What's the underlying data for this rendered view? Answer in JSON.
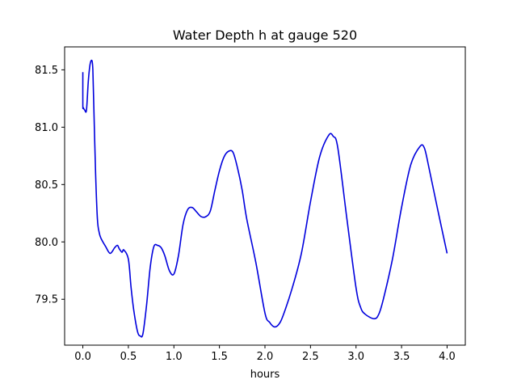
{
  "chart_data": {
    "type": "line",
    "title": "Water Depth h at gauge 520",
    "xlabel": "hours",
    "ylabel": "",
    "xlim": [
      -0.2,
      4.2
    ],
    "ylim": [
      79.1,
      81.7
    ],
    "xticks": [
      0.0,
      0.5,
      1.0,
      1.5,
      2.0,
      2.5,
      3.0,
      3.5,
      4.0
    ],
    "xtick_labels": [
      "0.0",
      "0.5",
      "1.0",
      "1.5",
      "2.0",
      "2.5",
      "3.0",
      "3.5",
      "4.0"
    ],
    "yticks": [
      79.5,
      80.0,
      80.5,
      81.0,
      81.5
    ],
    "ytick_labels": [
      "79.5",
      "80.0",
      "80.5",
      "81.0",
      "81.5"
    ],
    "grid": false,
    "series": [
      {
        "color": "#0000dd",
        "x": [
          0.0,
          0.0,
          0.005,
          0.02,
          0.04,
          0.06,
          0.08,
          0.1,
          0.11,
          0.12,
          0.14,
          0.16,
          0.18,
          0.2,
          0.25,
          0.3,
          0.35,
          0.38,
          0.4,
          0.43,
          0.45,
          0.5,
          0.53,
          0.56,
          0.6,
          0.63,
          0.66,
          0.7,
          0.74,
          0.78,
          0.82,
          0.86,
          0.9,
          0.95,
          1.0,
          1.05,
          1.1,
          1.15,
          1.2,
          1.25,
          1.3,
          1.35,
          1.4,
          1.45,
          1.5,
          1.55,
          1.6,
          1.65,
          1.7,
          1.75,
          1.8,
          1.9,
          2.0,
          2.05,
          2.1,
          2.15,
          2.2,
          2.3,
          2.4,
          2.5,
          2.6,
          2.7,
          2.75,
          2.8,
          2.9,
          3.0,
          3.05,
          3.1,
          3.2,
          3.25,
          3.3,
          3.4,
          3.5,
          3.6,
          3.7,
          3.75,
          3.8,
          3.9,
          4.0
        ],
        "y": [
          81.48,
          81.19,
          81.17,
          81.15,
          81.15,
          81.4,
          81.55,
          81.58,
          81.5,
          81.2,
          80.6,
          80.2,
          80.08,
          80.03,
          79.96,
          79.9,
          79.95,
          79.97,
          79.94,
          79.91,
          79.93,
          79.85,
          79.6,
          79.4,
          79.22,
          79.18,
          79.2,
          79.45,
          79.78,
          79.96,
          79.97,
          79.95,
          79.88,
          79.75,
          79.72,
          79.88,
          80.15,
          80.28,
          80.3,
          80.26,
          80.22,
          80.22,
          80.27,
          80.45,
          80.62,
          80.74,
          80.79,
          80.78,
          80.64,
          80.45,
          80.2,
          79.82,
          79.38,
          79.3,
          79.26,
          79.28,
          79.36,
          79.6,
          79.9,
          80.35,
          80.74,
          80.93,
          80.92,
          80.82,
          80.2,
          79.6,
          79.43,
          79.37,
          79.33,
          79.37,
          79.5,
          79.85,
          80.3,
          80.67,
          80.83,
          80.82,
          80.65,
          80.27,
          79.9
        ]
      }
    ]
  }
}
